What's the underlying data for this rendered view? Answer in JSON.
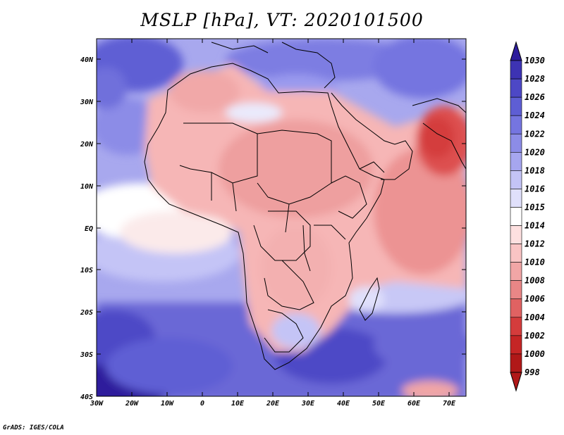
{
  "title": "MSLP [hPa], VT: 2020101500",
  "credit": "GrADS: IGES/COLA",
  "axes": {
    "lat_labels": [
      "40N",
      "30N",
      "20N",
      "10N",
      "EQ",
      "10S",
      "20S",
      "30S",
      "40S"
    ],
    "lon_labels": [
      "30W",
      "20W",
      "10W",
      "0",
      "10E",
      "20E",
      "30E",
      "40E",
      "50E",
      "60E",
      "70E"
    ]
  },
  "colorbar": {
    "levels": [
      "1030",
      "1028",
      "1026",
      "1024",
      "1022",
      "1020",
      "1018",
      "1016",
      "1015",
      "1014",
      "1012",
      "1010",
      "1008",
      "1006",
      "1004",
      "1002",
      "1000",
      "998"
    ],
    "colors": [
      "#2d1d9c",
      "#3d33b3",
      "#4d48c6",
      "#5e5ed4",
      "#7575e0",
      "#8c8ce7",
      "#a6a6ef",
      "#c4c4f6",
      "#e0e0fb",
      "#ffffff",
      "#fde0e0",
      "#f9c4c4",
      "#f1a6a6",
      "#e98686",
      "#e06262",
      "#d43c3c",
      "#c52525",
      "#b01818"
    ]
  },
  "colors": {
    "high": "#4a43c8",
    "mid_high": "#8d8dea",
    "neutral": "#ffffff",
    "low": "#f1a8a8",
    "very_low": "#dd4f4f"
  }
}
